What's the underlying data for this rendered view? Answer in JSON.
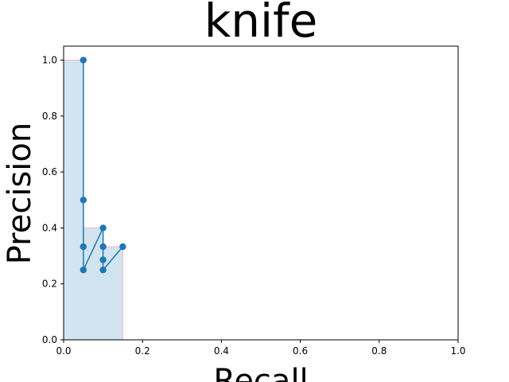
{
  "chart_data": {
    "type": "line",
    "title": "knife",
    "xlabel": "Recall",
    "ylabel": "Precision",
    "xlim": [
      0.0,
      1.0
    ],
    "ylim": [
      0.0,
      1.05
    ],
    "xticks": [
      0.0,
      0.2,
      0.4,
      0.6,
      0.8,
      1.0
    ],
    "yticks": [
      0.0,
      0.2,
      0.4,
      0.6,
      0.8,
      1.0
    ],
    "xtick_labels": [
      "0.0",
      "0.2",
      "0.4",
      "0.6",
      "0.8",
      "1.0"
    ],
    "ytick_labels": [
      "0.0",
      "0.2",
      "0.4",
      "0.6",
      "0.8",
      "1.0"
    ],
    "grid": false,
    "series": [
      {
        "type": "line-with-markers",
        "color": "#1f77b4",
        "x": [
          0.05,
          0.05,
          0.05,
          0.05,
          0.1,
          0.1,
          0.1,
          0.1,
          0.15
        ],
        "y": [
          1.0,
          0.5,
          0.333,
          0.25,
          0.4,
          0.333,
          0.286,
          0.25,
          0.333
        ]
      },
      {
        "type": "step-area",
        "fill_color": "#1f77b4",
        "fill_opacity": 0.2,
        "edge_color": "#f4b6c2",
        "x": [
          0.0,
          0.05,
          0.05,
          0.1,
          0.1,
          0.15,
          0.15
        ],
        "y": [
          1.0,
          1.0,
          0.4,
          0.4,
          0.333,
          0.333,
          0.0
        ]
      }
    ]
  }
}
